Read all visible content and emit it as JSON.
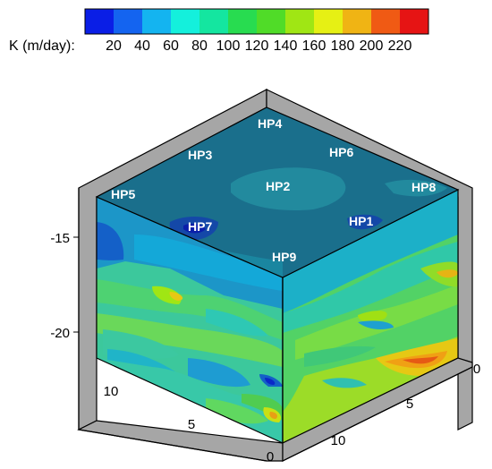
{
  "colorbar": {
    "label": "K (m/day):",
    "tick_labels": [
      "20",
      "40",
      "60",
      "80",
      "100",
      "120",
      "140",
      "160",
      "180",
      "200",
      "220"
    ],
    "colors": [
      "#0a1ee6",
      "#1464f0",
      "#14b4f0",
      "#14f0dc",
      "#14e6a0",
      "#28dc50",
      "#50dc28",
      "#a0e614",
      "#e6f014",
      "#f0b414",
      "#f05a14",
      "#e61414"
    ]
  },
  "axes": {
    "vertical_ticks": [
      "-15",
      "-20"
    ],
    "left_floor_ticks": [
      "10",
      "5",
      "0"
    ],
    "right_floor_ticks": [
      "10",
      "5",
      "0"
    ]
  },
  "wells": [
    "HP4",
    "HP3",
    "HP6",
    "HP2",
    "HP5",
    "HP8",
    "HP7",
    "HP1",
    "HP9"
  ],
  "colors": {
    "top_face": "#1a6f8c",
    "frame_gray": "#a6a6a6"
  }
}
